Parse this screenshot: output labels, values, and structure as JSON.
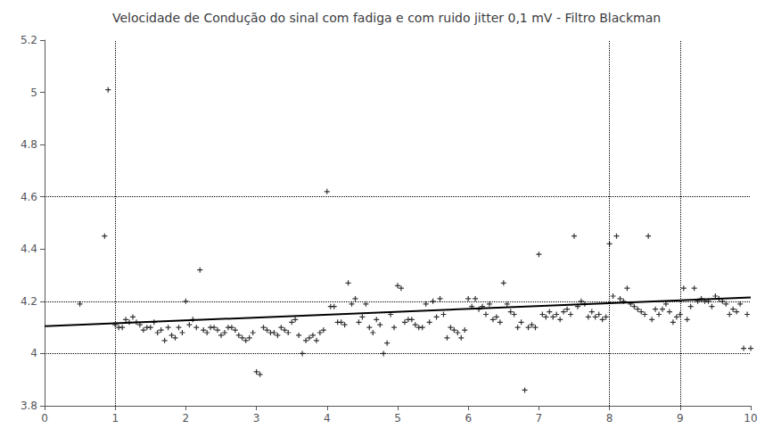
{
  "chart_data": {
    "type": "scatter",
    "title": "Velocidade de Condução do sinal com fadiga e com ruido jitter 0,1 mV - Filtro Blackman",
    "xlim": [
      0,
      10
    ],
    "ylim": [
      3.8,
      5.2
    ],
    "xticks": [
      0,
      1,
      2,
      3,
      4,
      5,
      6,
      7,
      8,
      9,
      10
    ],
    "yticks": [
      3.8,
      4.0,
      4.2,
      4.4,
      4.6,
      4.8,
      5.0,
      5.2
    ],
    "grid": false,
    "hlines": [
      4.0,
      4.2,
      4.6
    ],
    "vlines": [
      1,
      8,
      9
    ],
    "series": [
      {
        "type": "scatter",
        "marker": "plus",
        "color": "#000000",
        "x": [
          0.5,
          0.85,
          0.9,
          1.0,
          1.05,
          1.1,
          1.15,
          1.2,
          1.25,
          1.3,
          1.35,
          1.4,
          1.45,
          1.5,
          1.55,
          1.6,
          1.65,
          1.7,
          1.75,
          1.8,
          1.85,
          1.9,
          1.95,
          2.0,
          2.05,
          2.1,
          2.15,
          2.2,
          2.25,
          2.3,
          2.35,
          2.4,
          2.45,
          2.5,
          2.55,
          2.6,
          2.65,
          2.7,
          2.75,
          2.8,
          2.85,
          2.9,
          2.95,
          3.0,
          3.05,
          3.1,
          3.15,
          3.2,
          3.25,
          3.3,
          3.35,
          3.4,
          3.45,
          3.5,
          3.55,
          3.6,
          3.65,
          3.7,
          3.75,
          3.8,
          3.85,
          3.9,
          3.95,
          4.0,
          4.05,
          4.1,
          4.15,
          4.2,
          4.25,
          4.3,
          4.35,
          4.4,
          4.45,
          4.5,
          4.55,
          4.6,
          4.65,
          4.7,
          4.75,
          4.8,
          4.85,
          4.9,
          4.95,
          5.0,
          5.05,
          5.1,
          5.15,
          5.2,
          5.25,
          5.3,
          5.35,
          5.4,
          5.45,
          5.5,
          5.55,
          5.6,
          5.65,
          5.7,
          5.75,
          5.8,
          5.85,
          5.9,
          5.95,
          6.0,
          6.05,
          6.1,
          6.15,
          6.2,
          6.25,
          6.3,
          6.35,
          6.4,
          6.45,
          6.5,
          6.55,
          6.6,
          6.65,
          6.7,
          6.75,
          6.8,
          6.85,
          6.9,
          6.95,
          7.0,
          7.05,
          7.1,
          7.15,
          7.2,
          7.25,
          7.3,
          7.35,
          7.4,
          7.45,
          7.5,
          7.55,
          7.6,
          7.65,
          7.7,
          7.75,
          7.8,
          7.85,
          7.9,
          7.95,
          8.0,
          8.05,
          8.1,
          8.15,
          8.2,
          8.25,
          8.3,
          8.35,
          8.4,
          8.45,
          8.5,
          8.55,
          8.6,
          8.65,
          8.7,
          8.75,
          8.8,
          8.85,
          8.9,
          8.95,
          9.0,
          9.05,
          9.1,
          9.15,
          9.2,
          9.25,
          9.3,
          9.35,
          9.4,
          9.45,
          9.5,
          9.55,
          9.6,
          9.65,
          9.7,
          9.75,
          9.8,
          9.85,
          9.9,
          9.95,
          10.0
        ],
        "values": [
          4.19,
          4.45,
          5.01,
          4.11,
          4.1,
          4.1,
          4.13,
          4.12,
          4.14,
          4.12,
          4.11,
          4.09,
          4.1,
          4.1,
          4.12,
          4.08,
          4.09,
          4.05,
          4.1,
          4.07,
          4.06,
          4.1,
          4.08,
          4.2,
          4.11,
          4.13,
          4.1,
          4.32,
          4.09,
          4.08,
          4.1,
          4.1,
          4.09,
          4.07,
          4.08,
          4.1,
          4.1,
          4.09,
          4.07,
          4.06,
          4.05,
          4.06,
          4.08,
          3.93,
          3.92,
          4.1,
          4.09,
          4.08,
          4.08,
          4.07,
          4.1,
          4.09,
          4.08,
          4.12,
          4.13,
          4.07,
          4.0,
          4.05,
          4.06,
          4.07,
          4.05,
          4.08,
          4.09,
          4.62,
          4.18,
          4.18,
          4.12,
          4.12,
          4.11,
          4.27,
          4.19,
          4.21,
          4.12,
          4.14,
          4.19,
          4.1,
          4.08,
          4.13,
          4.11,
          4.0,
          4.04,
          4.15,
          4.1,
          4.26,
          4.25,
          4.12,
          4.13,
          4.13,
          4.11,
          4.1,
          4.1,
          4.19,
          4.12,
          4.2,
          4.14,
          4.21,
          4.15,
          4.06,
          4.1,
          4.09,
          4.08,
          4.06,
          4.09,
          4.21,
          4.18,
          4.21,
          4.17,
          4.18,
          4.15,
          4.19,
          4.13,
          4.14,
          4.12,
          4.27,
          4.19,
          4.16,
          4.15,
          4.1,
          4.12,
          3.86,
          4.1,
          4.11,
          4.1,
          4.38,
          4.15,
          4.14,
          4.16,
          4.14,
          4.15,
          4.13,
          4.16,
          4.17,
          4.15,
          4.45,
          4.18,
          4.2,
          4.19,
          4.14,
          4.16,
          4.14,
          4.15,
          4.13,
          4.14,
          4.42,
          4.22,
          4.45,
          4.21,
          4.2,
          4.25,
          4.19,
          4.18,
          4.17,
          4.16,
          4.15,
          4.45,
          4.13,
          4.17,
          4.15,
          4.17,
          4.19,
          4.16,
          4.12,
          4.14,
          4.15,
          4.25,
          4.13,
          4.18,
          4.25,
          4.2,
          4.21,
          4.2,
          4.2,
          4.18,
          4.22,
          4.21,
          4.2,
          4.19,
          4.15,
          4.17,
          4.16,
          4.19,
          4.02,
          4.15,
          4.02
        ]
      },
      {
        "type": "line",
        "color": "#000000",
        "x": [
          0,
          10
        ],
        "values": [
          4.105,
          4.215
        ]
      }
    ]
  }
}
